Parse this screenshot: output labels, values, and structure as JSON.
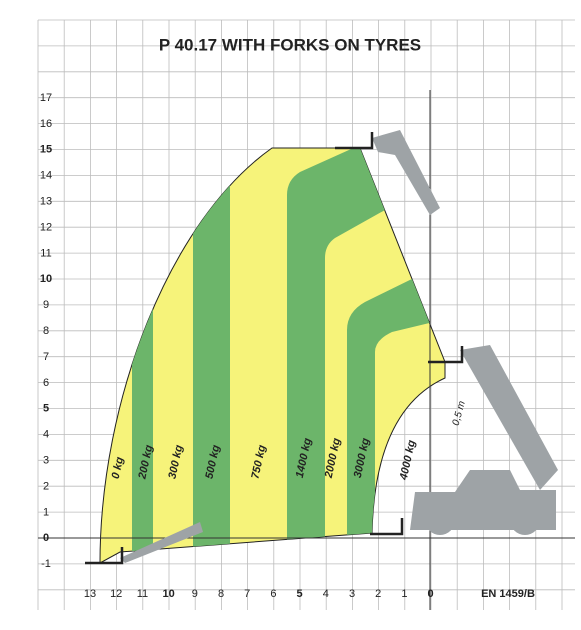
{
  "header": {
    "title": "P 40.17 WITH FORKS ON TYRES"
  },
  "y_axis": {
    "labels": [
      "17",
      "16",
      "15",
      "14",
      "13",
      "12",
      "11",
      "10",
      "9",
      "8",
      "7",
      "6",
      "5",
      "4",
      "3",
      "2",
      "1",
      "0",
      "-1"
    ]
  },
  "x_axis": {
    "labels": [
      "13",
      "12",
      "11",
      "10",
      "9",
      "8",
      "7",
      "6",
      "5",
      "4",
      "3",
      "2",
      "1",
      "0"
    ]
  },
  "load_zones": [
    "0 kg",
    "200 kg",
    "300 kg",
    "500 kg",
    "750 kg",
    "1400 kg",
    "2000 kg",
    "3000 kg",
    "4000 kg"
  ],
  "annotation": "0,5 m",
  "standard": "EN 1459/B"
}
